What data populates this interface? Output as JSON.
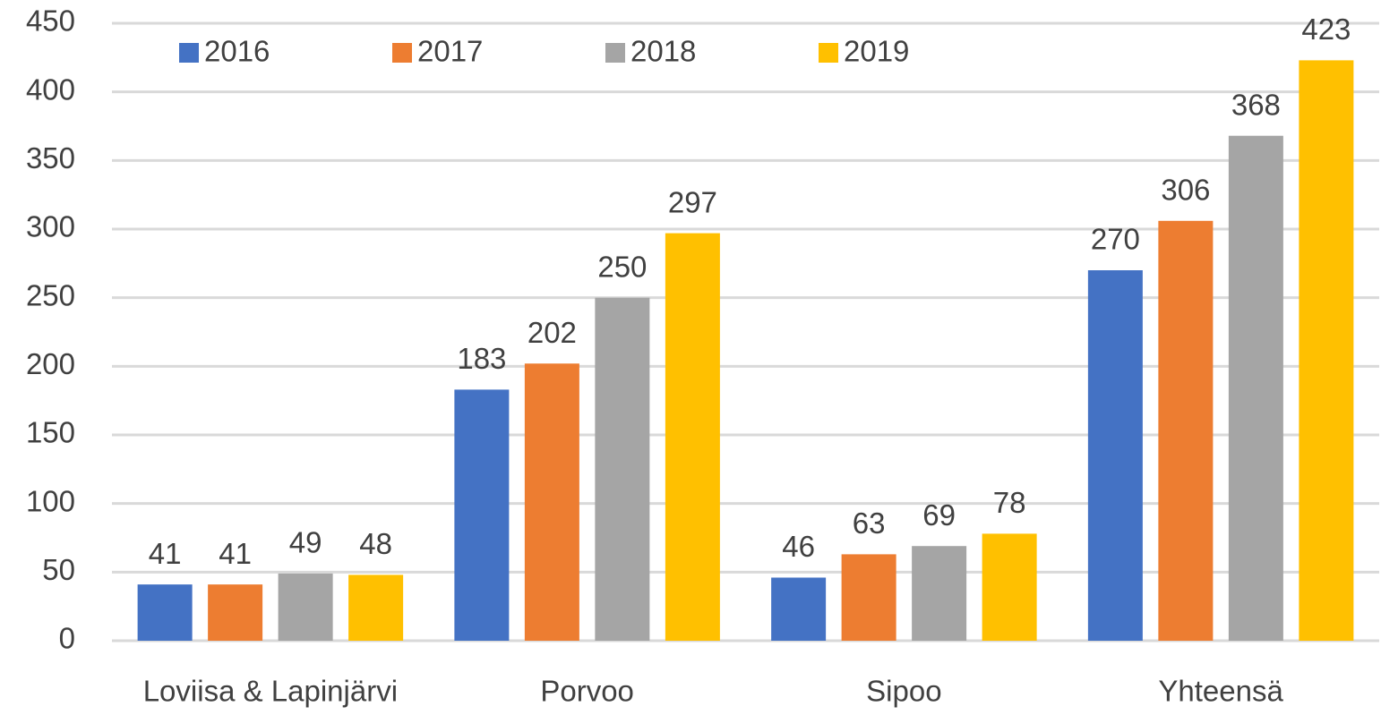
{
  "chart_data": {
    "type": "bar",
    "categories": [
      "Loviisa & Lapinjärvi",
      "Porvoo",
      "Sipoo",
      "Yhteensä"
    ],
    "series": [
      {
        "name": "2016",
        "color": "#4472c4",
        "values": [
          41,
          183,
          46,
          270
        ]
      },
      {
        "name": "2017",
        "color": "#ed7d31",
        "values": [
          41,
          202,
          63,
          306
        ]
      },
      {
        "name": "2018",
        "color": "#a5a5a5",
        "values": [
          49,
          250,
          69,
          368
        ]
      },
      {
        "name": "2019",
        "color": "#ffc000",
        "values": [
          48,
          297,
          78,
          423
        ]
      }
    ],
    "ylim": [
      0,
      450
    ],
    "yticks": [
      0,
      50,
      100,
      150,
      200,
      250,
      300,
      350,
      400,
      450
    ],
    "grid": true,
    "legend": "top",
    "data_labels": true
  }
}
